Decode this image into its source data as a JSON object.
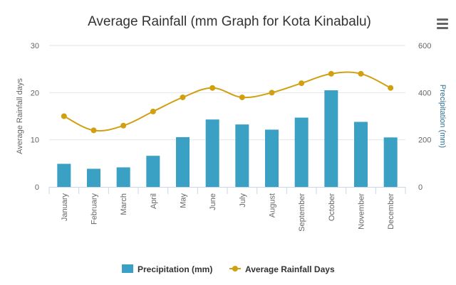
{
  "chart_data": {
    "type": "bar",
    "title": "Average Rainfall (mm Graph for Kota Kinabalu)",
    "categories": [
      "January",
      "February",
      "March",
      "April",
      "May",
      "June",
      "July",
      "August",
      "September",
      "October",
      "November",
      "December"
    ],
    "series": [
      {
        "name": "Precipitation (mm)",
        "type": "bar",
        "axis": "right",
        "color": "#3aa0c4",
        "values": [
          98,
          77,
          83,
          132,
          211,
          286,
          265,
          243,
          294,
          410,
          276,
          210
        ]
      },
      {
        "name": "Average Rainfall Days",
        "type": "line",
        "axis": "left",
        "color": "#d0a010",
        "values": [
          15,
          12,
          13,
          16,
          19,
          21,
          19,
          20,
          22,
          24,
          24,
          21
        ]
      }
    ],
    "y_left": {
      "label": "Average Rainfall days",
      "lim": [
        0,
        30
      ],
      "ticks": [
        "0",
        "10",
        "20",
        "30"
      ]
    },
    "y_right": {
      "label": "Precipitation (mm)",
      "lim": [
        0,
        600
      ],
      "ticks": [
        "0",
        "200",
        "400",
        "600"
      ]
    },
    "grid": true,
    "legend": "bottom-center"
  },
  "menu": {
    "icon": "hamburger-menu-icon"
  }
}
